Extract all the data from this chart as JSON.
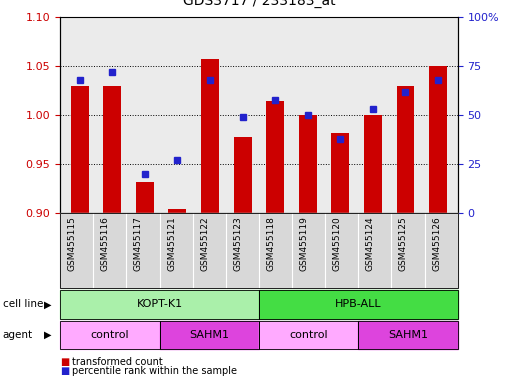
{
  "title": "GDS3717 / 233183_at",
  "samples": [
    "GSM455115",
    "GSM455116",
    "GSM455117",
    "GSM455121",
    "GSM455122",
    "GSM455123",
    "GSM455118",
    "GSM455119",
    "GSM455120",
    "GSM455124",
    "GSM455125",
    "GSM455126"
  ],
  "transformed_count": [
    1.03,
    1.03,
    0.932,
    0.904,
    1.057,
    0.978,
    1.014,
    1.0,
    0.982,
    1.0,
    1.03,
    1.05
  ],
  "percentile_rank": [
    68,
    72,
    20,
    27,
    68,
    49,
    58,
    50,
    38,
    53,
    62,
    68
  ],
  "ylim_left": [
    0.9,
    1.1
  ],
  "ylim_right": [
    0,
    100
  ],
  "yticks_left": [
    0.9,
    0.95,
    1.0,
    1.05,
    1.1
  ],
  "yticks_right": [
    0,
    25,
    50,
    75,
    100
  ],
  "ytick_labels_right": [
    "0",
    "25",
    "50",
    "75",
    "100%"
  ],
  "bar_color": "#cc0000",
  "dot_color": "#2222cc",
  "plot_bg": "#ebebeb",
  "tick_bg": "#d8d8d8",
  "cell_line_groups": [
    {
      "label": "KOPT-K1",
      "start": 0,
      "end": 6,
      "color": "#aaf0aa"
    },
    {
      "label": "HPB-ALL",
      "start": 6,
      "end": 12,
      "color": "#44dd44"
    }
  ],
  "agent_groups": [
    {
      "label": "control",
      "start": 0,
      "end": 3,
      "color": "#ffaaff"
    },
    {
      "label": "SAHM1",
      "start": 3,
      "end": 6,
      "color": "#dd44dd"
    },
    {
      "label": "control",
      "start": 6,
      "end": 9,
      "color": "#ffaaff"
    },
    {
      "label": "SAHM1",
      "start": 9,
      "end": 12,
      "color": "#dd44dd"
    }
  ]
}
